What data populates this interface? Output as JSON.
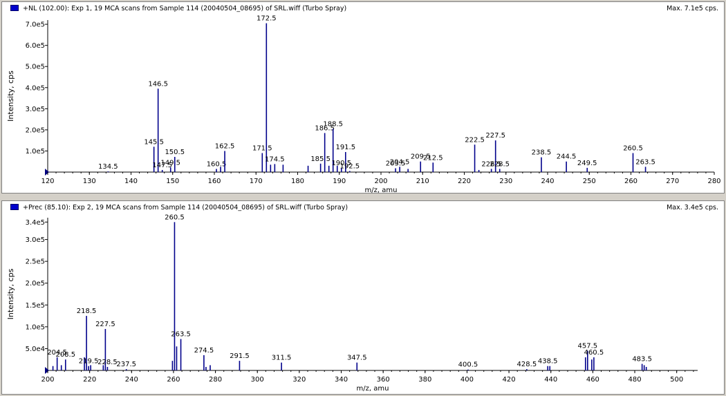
{
  "panels": [
    {
      "title": "+NL (102.00): Exp 1, 19 MCA scans from Sample 114 (20040504_08695) of SRL.wiff (Turbo Spray)",
      "max_label": "Max. 7.1e5 cps.",
      "colors": {
        "peak": "#00008b",
        "marker": "#000080"
      }
    },
    {
      "title": "+Prec (85.10): Exp 2, 19 MCA scans from Sample 114 (20040504_08695) of SRL.wiff (Turbo Spray)",
      "max_label": "Max. 3.4e5 cps.",
      "colors": {
        "peak": "#00008b",
        "marker": "#000080"
      }
    }
  ],
  "chart_data": [
    {
      "type": "bar",
      "xlabel": "m/z, amu",
      "ylabel": "Intensity, cps",
      "xlim": [
        120,
        280
      ],
      "ylim": [
        0,
        720000
      ],
      "xticks": [
        {
          "v": 120,
          "label": "120"
        },
        {
          "v": 130,
          "label": "130"
        },
        {
          "v": 140,
          "label": "140"
        },
        {
          "v": 150,
          "label": "150"
        },
        {
          "v": 160,
          "label": "160"
        },
        {
          "v": 170,
          "label": "170"
        },
        {
          "v": 180,
          "label": "180"
        },
        {
          "v": 190,
          "label": "190"
        },
        {
          "v": 200,
          "label": "200"
        },
        {
          "v": 210,
          "label": "210"
        },
        {
          "v": 220,
          "label": "220"
        },
        {
          "v": 230,
          "label": "230"
        },
        {
          "v": 240,
          "label": "240"
        },
        {
          "v": 250,
          "label": "250"
        },
        {
          "v": 260,
          "label": "260"
        },
        {
          "v": 270,
          "label": "270"
        },
        {
          "v": 280,
          "label": "280"
        }
      ],
      "yticks": [
        {
          "v": 100000,
          "label": "1.0e5"
        },
        {
          "v": 200000,
          "label": "2.0e5"
        },
        {
          "v": 300000,
          "label": "3.0e5"
        },
        {
          "v": 400000,
          "label": "4.0e5"
        },
        {
          "v": 500000,
          "label": "5.0e5"
        },
        {
          "v": 600000,
          "label": "6.0e5"
        },
        {
          "v": 700000,
          "label": "7.0e5"
        }
      ],
      "peaks": [
        {
          "x": 134.5,
          "y": 3000,
          "label": "134.5"
        },
        {
          "x": 145.5,
          "y": 120000,
          "label": "145.5"
        },
        {
          "x": 146.5,
          "y": 395000,
          "label": "146.5"
        },
        {
          "x": 147.5,
          "y": 10000,
          "label": "147.5"
        },
        {
          "x": 149.5,
          "y": 22000,
          "label": "149.5"
        },
        {
          "x": 150.5,
          "y": 72000,
          "label": "150.5"
        },
        {
          "x": 160.5,
          "y": 15000,
          "label": "160.5"
        },
        {
          "x": 161.5,
          "y": 25000,
          "label": ""
        },
        {
          "x": 162.5,
          "y": 100000,
          "label": "162.5"
        },
        {
          "x": 171.5,
          "y": 90000,
          "label": "171.5"
        },
        {
          "x": 172.5,
          "y": 705000,
          "label": "172.5"
        },
        {
          "x": 173.5,
          "y": 35000,
          "label": ""
        },
        {
          "x": 174.5,
          "y": 38000,
          "label": "174.5"
        },
        {
          "x": 176.5,
          "y": 35000,
          "label": ""
        },
        {
          "x": 182.5,
          "y": 30000,
          "label": ""
        },
        {
          "x": 185.5,
          "y": 40000,
          "label": "185.5"
        },
        {
          "x": 186.5,
          "y": 185000,
          "label": "186.5"
        },
        {
          "x": 187.5,
          "y": 30000,
          "label": ""
        },
        {
          "x": 188.5,
          "y": 205000,
          "label": "188.5"
        },
        {
          "x": 189.5,
          "y": 30000,
          "label": ""
        },
        {
          "x": 190.5,
          "y": 20000,
          "label": "190.5"
        },
        {
          "x": 191.5,
          "y": 95000,
          "label": "191.5"
        },
        {
          "x": 192.5,
          "y": 5000,
          "label": "192.5"
        },
        {
          "x": 203.5,
          "y": 18000,
          "label": "203.5"
        },
        {
          "x": 204.5,
          "y": 25000,
          "label": "204.5"
        },
        {
          "x": 206.5,
          "y": 15000,
          "label": ""
        },
        {
          "x": 209.5,
          "y": 50000,
          "label": "209.5"
        },
        {
          "x": 212.5,
          "y": 45000,
          "label": "212.5"
        },
        {
          "x": 222.5,
          "y": 130000,
          "label": "222.5"
        },
        {
          "x": 223.5,
          "y": 10000,
          "label": ""
        },
        {
          "x": 226.5,
          "y": 15000,
          "label": "226.5"
        },
        {
          "x": 227.5,
          "y": 150000,
          "label": "227.5"
        },
        {
          "x": 228.5,
          "y": 15000,
          "label": "228.5"
        },
        {
          "x": 238.5,
          "y": 70000,
          "label": "238.5"
        },
        {
          "x": 244.5,
          "y": 50000,
          "label": "244.5"
        },
        {
          "x": 249.5,
          "y": 20000,
          "label": "249.5"
        },
        {
          "x": 260.5,
          "y": 90000,
          "label": "260.5"
        },
        {
          "x": 263.5,
          "y": 25000,
          "label": "263.5"
        }
      ]
    },
    {
      "type": "bar",
      "xlabel": "m/z, amu",
      "ylabel": "Intensity, cps",
      "xlim": [
        200,
        510
      ],
      "ylim": [
        0,
        350000
      ],
      "xticks": [
        {
          "v": 200,
          "label": "200"
        },
        {
          "v": 220,
          "label": "220"
        },
        {
          "v": 240,
          "label": "240"
        },
        {
          "v": 260,
          "label": "260"
        },
        {
          "v": 280,
          "label": "280"
        },
        {
          "v": 300,
          "label": "300"
        },
        {
          "v": 320,
          "label": "320"
        },
        {
          "v": 340,
          "label": "340"
        },
        {
          "v": 360,
          "label": "360"
        },
        {
          "v": 380,
          "label": "380"
        },
        {
          "v": 400,
          "label": "400"
        },
        {
          "v": 420,
          "label": "420"
        },
        {
          "v": 440,
          "label": "440"
        },
        {
          "v": 460,
          "label": "460"
        },
        {
          "v": 480,
          "label": "480"
        },
        {
          "v": 500,
          "label": "500"
        }
      ],
      "yticks": [
        {
          "v": 50000,
          "label": "5.0e4"
        },
        {
          "v": 100000,
          "label": "1.0e5"
        },
        {
          "v": 150000,
          "label": "1.5e5"
        },
        {
          "v": 200000,
          "label": "2.0e5"
        },
        {
          "v": 250000,
          "label": "2.5e5"
        },
        {
          "v": 300000,
          "label": "3.0e5"
        },
        {
          "v": 340000,
          "label": "3.4e5"
        }
      ],
      "peaks": [
        {
          "x": 202.5,
          "y": 10000,
          "label": ""
        },
        {
          "x": 204.5,
          "y": 30000,
          "label": "204.5"
        },
        {
          "x": 206.5,
          "y": 12000,
          "label": ""
        },
        {
          "x": 208.5,
          "y": 25000,
          "label": "208.5"
        },
        {
          "x": 217.5,
          "y": 30000,
          "label": ""
        },
        {
          "x": 218.5,
          "y": 125000,
          "label": "218.5"
        },
        {
          "x": 219.5,
          "y": 10000,
          "label": "219.5"
        },
        {
          "x": 220.5,
          "y": 12000,
          "label": ""
        },
        {
          "x": 226.5,
          "y": 12000,
          "label": ""
        },
        {
          "x": 227.5,
          "y": 95000,
          "label": "227.5"
        },
        {
          "x": 228.5,
          "y": 8000,
          "label": "228.5"
        },
        {
          "x": 237.5,
          "y": 3000,
          "label": "237.5"
        },
        {
          "x": 259.5,
          "y": 22000,
          "label": ""
        },
        {
          "x": 260.5,
          "y": 340000,
          "label": "260.5"
        },
        {
          "x": 261.5,
          "y": 55000,
          "label": ""
        },
        {
          "x": 263.5,
          "y": 72000,
          "label": "263.5"
        },
        {
          "x": 274.5,
          "y": 35000,
          "label": "274.5"
        },
        {
          "x": 275.5,
          "y": 8000,
          "label": ""
        },
        {
          "x": 277.5,
          "y": 12000,
          "label": ""
        },
        {
          "x": 291.5,
          "y": 22000,
          "label": "291.5"
        },
        {
          "x": 311.5,
          "y": 18000,
          "label": "311.5"
        },
        {
          "x": 347.5,
          "y": 18000,
          "label": "347.5"
        },
        {
          "x": 400.5,
          "y": 2000,
          "label": "400.5"
        },
        {
          "x": 428.5,
          "y": 3000,
          "label": "428.5"
        },
        {
          "x": 438.5,
          "y": 10000,
          "label": "438.5"
        },
        {
          "x": 439.5,
          "y": 10000,
          "label": ""
        },
        {
          "x": 456.5,
          "y": 30000,
          "label": ""
        },
        {
          "x": 457.5,
          "y": 45000,
          "label": "457.5"
        },
        {
          "x": 459.5,
          "y": 25000,
          "label": ""
        },
        {
          "x": 460.5,
          "y": 30000,
          "label": "460.5"
        },
        {
          "x": 483.5,
          "y": 15000,
          "label": "483.5"
        },
        {
          "x": 484.5,
          "y": 12000,
          "label": ""
        },
        {
          "x": 485.5,
          "y": 8000,
          "label": ""
        }
      ]
    }
  ]
}
